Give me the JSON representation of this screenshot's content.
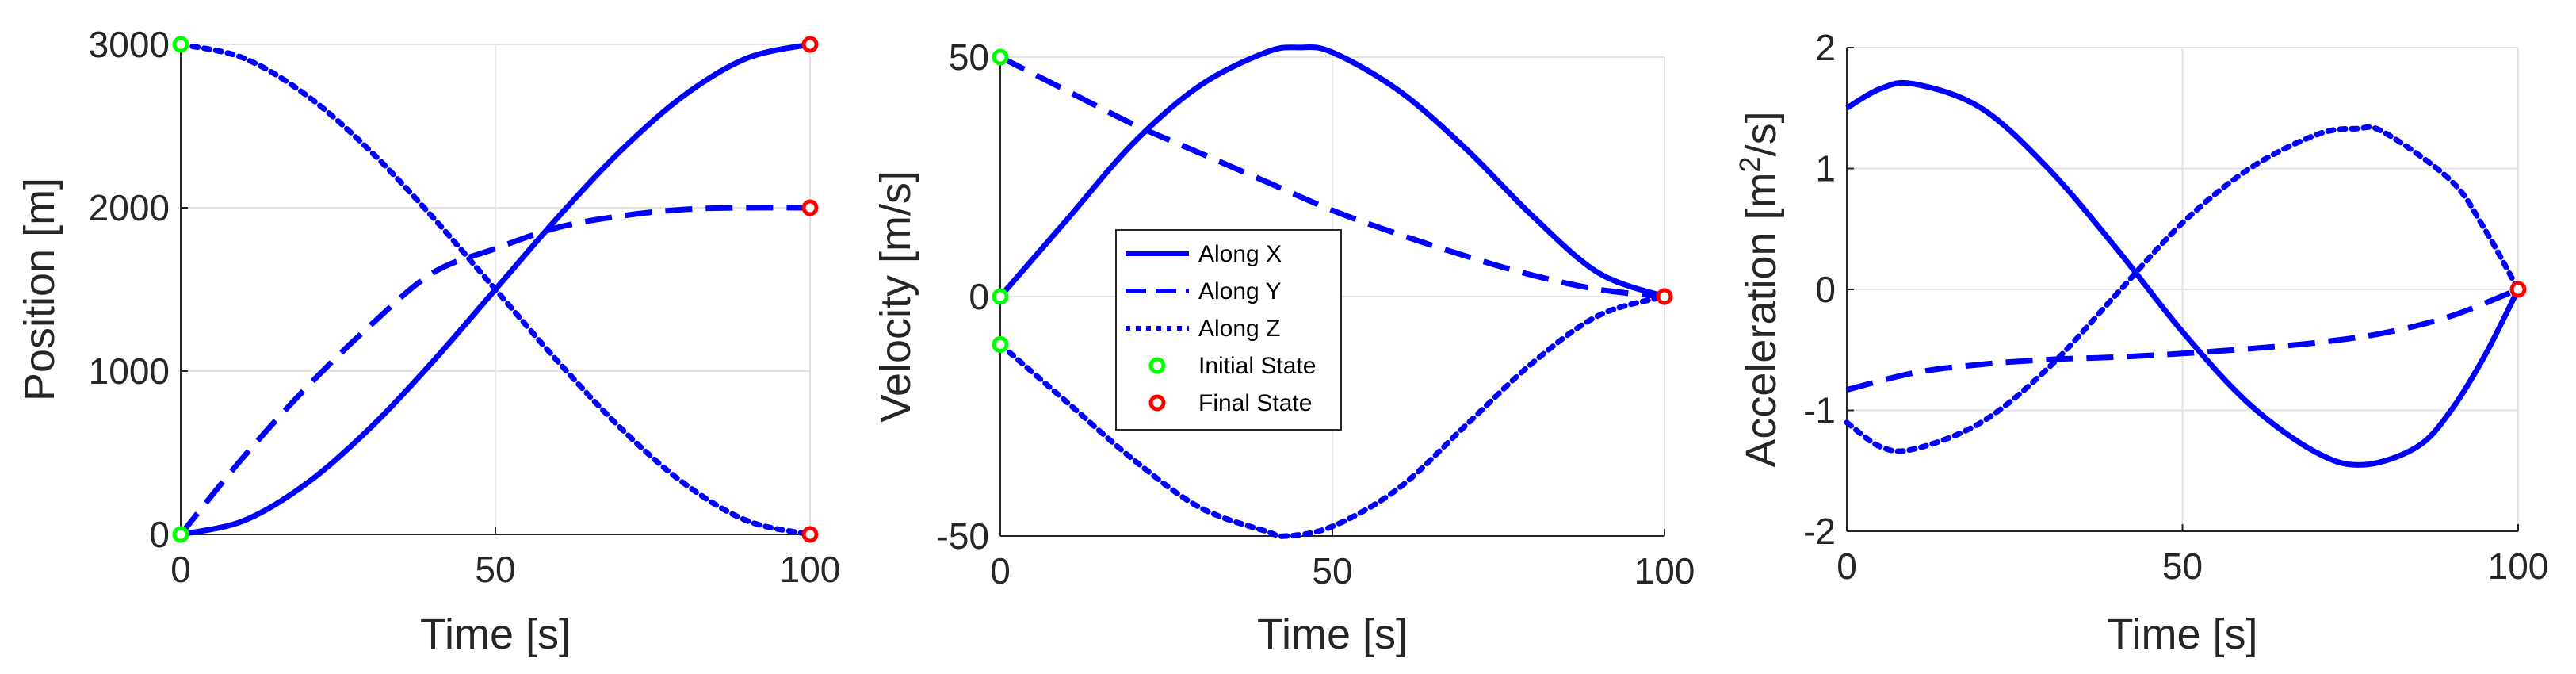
{
  "colors": {
    "line": "#0000FF",
    "initial": "#00FF00",
    "final": "#FF0000"
  },
  "legend": {
    "placement": "center-left of middle panel",
    "entries": [
      {
        "label": "Along X",
        "style": "solid"
      },
      {
        "label": "Along Y",
        "style": "dashed"
      },
      {
        "label": "Along Z",
        "style": "dotted"
      },
      {
        "label": "Initial State",
        "marker": "initial"
      },
      {
        "label": "Final State",
        "marker": "final"
      }
    ]
  },
  "chart_data": [
    {
      "type": "line",
      "xlabel": "Time [s]",
      "ylabel": "Position [m]",
      "xlim": [
        0,
        100
      ],
      "ylim": [
        0,
        3000
      ],
      "xticks": [
        0,
        50,
        100
      ],
      "yticks": [
        0,
        1000,
        2000,
        3000
      ],
      "grid": true,
      "series": [
        {
          "name": "Along X",
          "style": "solid",
          "x": [
            0,
            10,
            20,
            30,
            40,
            50,
            60,
            70,
            80,
            90,
            100
          ],
          "y": [
            0,
            84,
            312,
            648,
            1056,
            1500,
            1944,
            2352,
            2688,
            2916,
            3000
          ]
        },
        {
          "name": "Along Y",
          "style": "dashed",
          "x": [
            0,
            10,
            20,
            30,
            40,
            50,
            60,
            70,
            80,
            90,
            100
          ],
          "y": [
            0,
            475,
            900,
            1275,
            1600,
            1750,
            1880,
            1950,
            1990,
            2000,
            2000
          ]
        },
        {
          "name": "Along Z",
          "style": "dotted",
          "x": [
            0,
            10,
            20,
            30,
            40,
            50,
            60,
            70,
            80,
            90,
            100
          ],
          "y": [
            3000,
            2916,
            2688,
            2352,
            1944,
            1500,
            1056,
            648,
            312,
            84,
            0
          ]
        }
      ],
      "initial_points": [
        [
          0,
          0
        ],
        [
          0,
          0
        ],
        [
          0,
          3000
        ]
      ],
      "final_points": [
        [
          100,
          3000
        ],
        [
          100,
          2000
        ],
        [
          100,
          0
        ]
      ]
    },
    {
      "type": "line",
      "xlabel": "Time [s]",
      "ylabel": "Velocity [m/s]",
      "xlim": [
        0,
        100
      ],
      "ylim": [
        -50,
        50
      ],
      "xticks": [
        0,
        50,
        100
      ],
      "yticks": [
        -50,
        0,
        50
      ],
      "grid": true,
      "series": [
        {
          "name": "Along X",
          "style": "solid",
          "x": [
            0,
            10,
            20,
            30,
            40,
            45,
            50,
            60,
            70,
            80,
            90,
            100
          ],
          "y": [
            0,
            16,
            32,
            44,
            51,
            52,
            51,
            43,
            31,
            17,
            5,
            0
          ]
        },
        {
          "name": "Along Y",
          "style": "dashed",
          "x": [
            0,
            10,
            20,
            30,
            40,
            50,
            60,
            70,
            80,
            90,
            100
          ],
          "y": [
            50,
            43,
            36,
            30,
            24,
            18,
            13,
            8.5,
            4.5,
            1.5,
            0
          ]
        },
        {
          "name": "Along Z",
          "style": "dotted",
          "x": [
            0,
            10,
            20,
            30,
            40,
            43,
            50,
            60,
            70,
            80,
            90,
            100
          ],
          "y": [
            -10,
            -22,
            -34,
            -44,
            -49,
            -50,
            -48,
            -40,
            -27,
            -14,
            -4,
            0
          ]
        }
      ],
      "initial_points": [
        [
          0,
          0
        ],
        [
          0,
          50
        ],
        [
          0,
          -10
        ]
      ],
      "final_points": [
        [
          100,
          0
        ],
        [
          100,
          0
        ],
        [
          100,
          0
        ]
      ]
    },
    {
      "type": "line",
      "xlabel": "Time [s]",
      "ylabel": "Acceleration [m",
      "ylabel_sup": "2",
      "ylabel_end": "/s]",
      "xlim": [
        0,
        100
      ],
      "ylim": [
        -2,
        2
      ],
      "xticks": [
        0,
        50,
        100
      ],
      "yticks": [
        -2,
        -1,
        0,
        1,
        2
      ],
      "grid": true,
      "series": [
        {
          "name": "Along X",
          "style": "solid",
          "x": [
            0,
            5,
            10,
            20,
            30,
            40,
            50,
            60,
            70,
            77,
            85,
            90,
            95,
            100
          ],
          "y": [
            1.5,
            1.66,
            1.7,
            1.5,
            1.0,
            0.35,
            -0.35,
            -0.95,
            -1.35,
            -1.45,
            -1.3,
            -1.0,
            -0.55,
            0
          ]
        },
        {
          "name": "Along Y",
          "style": "dashed",
          "x": [
            0,
            10,
            20,
            30,
            40,
            50,
            60,
            70,
            80,
            90,
            100
          ],
          "y": [
            -0.83,
            -0.69,
            -0.62,
            -0.58,
            -0.56,
            -0.53,
            -0.49,
            -0.44,
            -0.36,
            -0.22,
            0
          ]
        },
        {
          "name": "Along Z",
          "style": "dotted",
          "x": [
            0,
            5,
            10,
            20,
            30,
            40,
            50,
            60,
            70,
            76,
            80,
            90,
            95,
            100
          ],
          "y": [
            -1.1,
            -1.3,
            -1.32,
            -1.1,
            -0.65,
            -0.05,
            0.55,
            1.0,
            1.28,
            1.33,
            1.3,
            0.9,
            0.5,
            0
          ]
        }
      ],
      "initial_points": [],
      "final_points": [
        [
          100,
          0
        ]
      ]
    }
  ]
}
